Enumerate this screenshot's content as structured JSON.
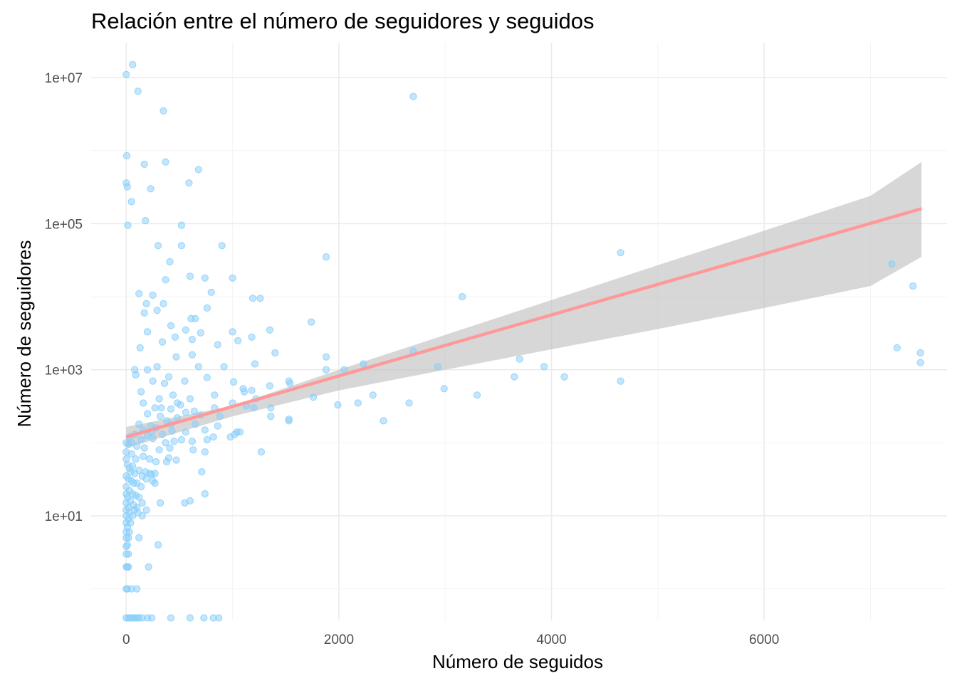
{
  "chart_data": {
    "type": "scatter",
    "title": "Relación entre el número de seguidores y seguidos",
    "xlabel": "Número de seguidos",
    "ylabel": "Número de seguidores",
    "x_ticks": [
      0,
      2000,
      4000,
      6000
    ],
    "x_tick_labels": [
      "0",
      "2000",
      "4000",
      "6000"
    ],
    "xlim": [
      -330,
      7720
    ],
    "y_scale": "log10",
    "y_ticks": [
      10,
      1000,
      100000,
      10000000
    ],
    "y_tick_labels": [
      "1e+01",
      "1e+03",
      "1e+05",
      "1e+07"
    ],
    "ylim": [
      0.37,
      30000000
    ],
    "grid": true,
    "legend": "none",
    "colors": {
      "points": "#87CEFA",
      "fit_line": "#FF9999",
      "ribbon": "#BEBEBE"
    },
    "series": [
      {
        "points": [
          [
            0,
            11000000
          ],
          [
            60,
            15000000
          ],
          [
            110,
            6500000
          ],
          [
            350,
            3500000
          ],
          [
            2700,
            5500000
          ],
          [
            5,
            850000
          ],
          [
            170,
            650000
          ],
          [
            370,
            700000
          ],
          [
            680,
            550000
          ],
          [
            0,
            360000
          ],
          [
            10,
            320000
          ],
          [
            230,
            300000
          ],
          [
            590,
            360000
          ],
          [
            50,
            200000
          ],
          [
            180,
            110000
          ],
          [
            15,
            95000
          ],
          [
            520,
            95000
          ],
          [
            300,
            50000
          ],
          [
            520,
            50000
          ],
          [
            900,
            50000
          ],
          [
            1880,
            35000
          ],
          [
            4650,
            40000
          ],
          [
            410,
            30000
          ],
          [
            370,
            17000
          ],
          [
            600,
            19000
          ],
          [
            740,
            18000
          ],
          [
            1000,
            18000
          ],
          [
            7200,
            28000
          ],
          [
            7400,
            14000
          ],
          [
            120,
            11000
          ],
          [
            250,
            10500
          ],
          [
            800,
            11500
          ],
          [
            1190,
            9500
          ],
          [
            1260,
            9500
          ],
          [
            3160,
            10000
          ],
          [
            190,
            8000
          ],
          [
            350,
            8000
          ],
          [
            170,
            6000
          ],
          [
            290,
            6500
          ],
          [
            610,
            5000
          ],
          [
            650,
            5000
          ],
          [
            760,
            7000
          ],
          [
            1740,
            4500
          ],
          [
            1350,
            3500
          ],
          [
            1000,
            3300
          ],
          [
            200,
            3300
          ],
          [
            420,
            4000
          ],
          [
            560,
            3500
          ],
          [
            130,
            2000
          ],
          [
            340,
            2400
          ],
          [
            460,
            2800
          ],
          [
            620,
            2600
          ],
          [
            700,
            3200
          ],
          [
            860,
            2200
          ],
          [
            1180,
            2800
          ],
          [
            1050,
            2500
          ],
          [
            1400,
            1700
          ],
          [
            1880,
            1500
          ],
          [
            2700,
            1800
          ],
          [
            3700,
            1400
          ],
          [
            7250,
            2000
          ],
          [
            7470,
            1700
          ],
          [
            7470,
            1250
          ],
          [
            80,
            1000
          ],
          [
            90,
            850
          ],
          [
            200,
            1000
          ],
          [
            290,
            1100
          ],
          [
            470,
            1500
          ],
          [
            620,
            1600
          ],
          [
            680,
            1100
          ],
          [
            920,
            1100
          ],
          [
            1210,
            1200
          ],
          [
            1530,
            700
          ],
          [
            1880,
            1000
          ],
          [
            2050,
            1000
          ],
          [
            2230,
            1200
          ],
          [
            2930,
            1100
          ],
          [
            3650,
            800
          ],
          [
            3930,
            1100
          ],
          [
            4120,
            800
          ],
          [
            4650,
            700
          ],
          [
            250,
            700
          ],
          [
            360,
            650
          ],
          [
            400,
            800
          ],
          [
            550,
            700
          ],
          [
            760,
            780
          ],
          [
            1010,
            680
          ],
          [
            1100,
            550
          ],
          [
            1180,
            520
          ],
          [
            1350,
            600
          ],
          [
            1540,
            650
          ],
          [
            2990,
            550
          ],
          [
            3300,
            450
          ],
          [
            140,
            500
          ],
          [
            160,
            350
          ],
          [
            310,
            400
          ],
          [
            440,
            450
          ],
          [
            480,
            350
          ],
          [
            600,
            400
          ],
          [
            830,
            450
          ],
          [
            1110,
            500
          ],
          [
            1220,
            400
          ],
          [
            1760,
            420
          ],
          [
            2180,
            350
          ],
          [
            2320,
            450
          ],
          [
            2660,
            350
          ],
          [
            1990,
            330
          ],
          [
            270,
            300
          ],
          [
            330,
            300
          ],
          [
            420,
            290
          ],
          [
            510,
            330
          ],
          [
            640,
            270
          ],
          [
            830,
            300
          ],
          [
            1000,
            350
          ],
          [
            1130,
            320
          ],
          [
            1200,
            300
          ],
          [
            1360,
            300
          ],
          [
            200,
            250
          ],
          [
            320,
            230
          ],
          [
            380,
            200
          ],
          [
            480,
            220
          ],
          [
            560,
            260
          ],
          [
            700,
            240
          ],
          [
            880,
            230
          ],
          [
            1360,
            230
          ],
          [
            1530,
            200
          ],
          [
            2420,
            200
          ],
          [
            120,
            180
          ],
          [
            230,
            170
          ],
          [
            280,
            160
          ],
          [
            420,
            180
          ],
          [
            650,
            180
          ],
          [
            860,
            170
          ],
          [
            1530,
            210
          ],
          [
            160,
            150
          ],
          [
            240,
            140
          ],
          [
            340,
            130
          ],
          [
            430,
            145
          ],
          [
            560,
            140
          ],
          [
            740,
            150
          ],
          [
            980,
            120
          ],
          [
            1040,
            140
          ],
          [
            30,
            120
          ],
          [
            80,
            130
          ],
          [
            140,
            110
          ],
          [
            200,
            125
          ],
          [
            250,
            115
          ],
          [
            370,
            100
          ],
          [
            450,
            105
          ],
          [
            520,
            110
          ],
          [
            620,
            105
          ],
          [
            760,
            110
          ],
          [
            820,
            120
          ],
          [
            1020,
            130
          ],
          [
            1070,
            140
          ],
          [
            0,
            100
          ],
          [
            20,
            95
          ],
          [
            50,
            100
          ],
          [
            100,
            90
          ],
          [
            170,
            85
          ],
          [
            310,
            80
          ],
          [
            410,
            85
          ],
          [
            630,
            80
          ],
          [
            740,
            75
          ],
          [
            1270,
            75
          ],
          [
            0,
            75
          ],
          [
            50,
            70
          ],
          [
            90,
            60
          ],
          [
            160,
            65
          ],
          [
            220,
            60
          ],
          [
            280,
            55
          ],
          [
            380,
            55
          ],
          [
            400,
            62
          ],
          [
            470,
            58
          ],
          [
            0,
            60
          ],
          [
            10,
            50
          ],
          [
            30,
            45
          ],
          [
            60,
            48
          ],
          [
            120,
            42
          ],
          [
            180,
            40
          ],
          [
            40,
            40
          ],
          [
            80,
            38
          ],
          [
            150,
            35
          ],
          [
            190,
            32
          ],
          [
            220,
            38
          ],
          [
            240,
            37
          ],
          [
            270,
            38
          ],
          [
            710,
            40
          ],
          [
            0,
            35
          ],
          [
            20,
            32
          ],
          [
            50,
            30
          ],
          [
            70,
            28
          ],
          [
            100,
            28
          ],
          [
            140,
            25
          ],
          [
            250,
            30
          ],
          [
            270,
            28
          ],
          [
            0,
            25
          ],
          [
            30,
            22
          ],
          [
            60,
            20
          ],
          [
            90,
            19
          ],
          [
            120,
            18
          ],
          [
            0,
            20
          ],
          [
            10,
            18
          ],
          [
            40,
            16
          ],
          [
            70,
            14
          ],
          [
            100,
            13
          ],
          [
            150,
            15
          ],
          [
            0,
            15
          ],
          [
            20,
            13
          ],
          [
            0,
            12
          ],
          [
            30,
            11
          ],
          [
            60,
            10
          ],
          [
            80,
            12
          ],
          [
            110,
            11
          ],
          [
            150,
            10
          ],
          [
            190,
            12
          ],
          [
            320,
            15
          ],
          [
            550,
            15
          ],
          [
            600,
            16
          ],
          [
            740,
            20
          ],
          [
            0,
            10
          ],
          [
            20,
            9
          ],
          [
            40,
            8
          ],
          [
            0,
            8
          ],
          [
            10,
            7
          ],
          [
            30,
            6
          ],
          [
            0,
            6
          ],
          [
            20,
            5
          ],
          [
            0,
            5
          ],
          [
            10,
            4
          ],
          [
            120,
            5
          ],
          [
            300,
            4
          ],
          [
            0,
            3.8
          ],
          [
            20,
            3
          ],
          [
            0,
            3
          ],
          [
            10,
            2
          ],
          [
            0,
            2
          ],
          [
            20,
            2
          ],
          [
            210,
            2
          ],
          [
            0,
            1
          ],
          [
            10,
            1
          ],
          [
            50,
            1
          ],
          [
            100,
            1
          ],
          [
            0,
            0.4
          ],
          [
            20,
            0.4
          ],
          [
            40,
            0.4
          ],
          [
            60,
            0.4
          ],
          [
            80,
            0.4
          ],
          [
            100,
            0.4
          ],
          [
            120,
            0.4
          ],
          [
            150,
            0.4
          ],
          [
            200,
            0.4
          ],
          [
            240,
            0.4
          ],
          [
            420,
            0.4
          ],
          [
            600,
            0.4
          ],
          [
            730,
            0.4
          ],
          [
            820,
            0.4
          ],
          [
            870,
            0.4
          ]
        ]
      }
    ],
    "trend_line": {
      "type": "linear fit (log10 scale)",
      "x": [
        0,
        7480
      ],
      "y": [
        120,
        160000
      ]
    },
    "confidence_band": {
      "x": [
        0,
        1000,
        2000,
        3000,
        4000,
        5000,
        6000,
        7000,
        7480
      ],
      "lower": [
        85,
        230,
        520,
        1000,
        1900,
        3600,
        7000,
        14000,
        35000
      ],
      "upper": [
        165,
        320,
        1000,
        3000,
        9000,
        27000,
        80000,
        240000,
        700000
      ]
    }
  }
}
